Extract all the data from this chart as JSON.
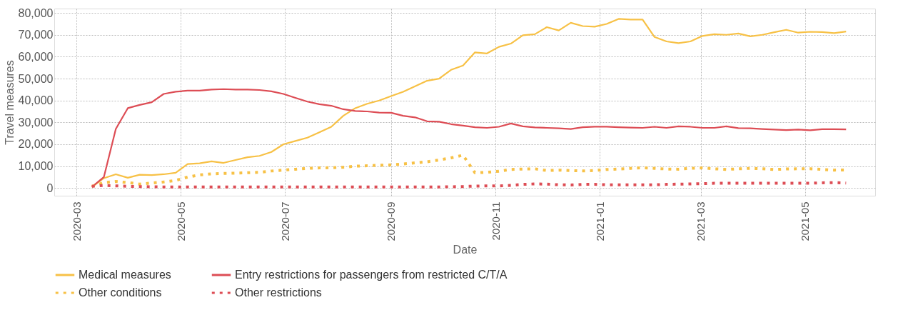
{
  "chart_data": {
    "type": "line",
    "xlabel": "Date",
    "ylabel": "Travel measures",
    "x": [
      "2020-03-10",
      "2020-03-17",
      "2020-03-24",
      "2020-03-31",
      "2020-04-07",
      "2020-04-14",
      "2020-04-21",
      "2020-04-28",
      "2020-05-05",
      "2020-05-12",
      "2020-05-19",
      "2020-05-26",
      "2020-06-02",
      "2020-06-09",
      "2020-06-16",
      "2020-06-23",
      "2020-06-30",
      "2020-07-07",
      "2020-07-14",
      "2020-07-21",
      "2020-07-28",
      "2020-08-04",
      "2020-08-11",
      "2020-08-18",
      "2020-08-25",
      "2020-09-01",
      "2020-09-08",
      "2020-09-15",
      "2020-09-22",
      "2020-09-29",
      "2020-10-06",
      "2020-10-13",
      "2020-10-20",
      "2020-10-27",
      "2020-11-03",
      "2020-11-10",
      "2020-11-17",
      "2020-11-24",
      "2020-12-01",
      "2020-12-08",
      "2020-12-15",
      "2020-12-22",
      "2020-12-29",
      "2021-01-05",
      "2021-01-12",
      "2021-01-19",
      "2021-01-26",
      "2021-02-02",
      "2021-02-09",
      "2021-02-16",
      "2021-02-23",
      "2021-03-02",
      "2021-03-09",
      "2021-03-16",
      "2021-03-23",
      "2021-03-30",
      "2021-04-06",
      "2021-04-13",
      "2021-04-20",
      "2021-04-27",
      "2021-05-04",
      "2021-05-11",
      "2021-05-18",
      "2021-05-25"
    ],
    "series": [
      {
        "name": "Medical measures",
        "color": "#f7c146",
        "line_style": "solid",
        "values": [
          500,
          4500,
          6300,
          4700,
          6100,
          5900,
          6300,
          7000,
          11000,
          11300,
          12200,
          11500,
          12800,
          14100,
          14700,
          16500,
          20000,
          21500,
          23000,
          25500,
          28000,
          33000,
          36500,
          38500,
          40000,
          42000,
          44000,
          46500,
          49000,
          50000,
          54000,
          56000,
          62000,
          61500,
          64500,
          66000,
          69800,
          70300,
          73500,
          72000,
          75500,
          74000,
          73700,
          75000,
          77300,
          77000,
          77000,
          69000,
          67000,
          66200,
          67000,
          69500,
          70300,
          70000,
          70600,
          69300,
          70000,
          71200,
          72300,
          71000,
          71400,
          71300,
          70800,
          71500
        ]
      },
      {
        "name": "Entry restrictions for passengers from restricted C/T/A",
        "color": "#dd4d55",
        "line_style": "solid",
        "values": [
          500,
          5000,
          27000,
          36500,
          38000,
          39200,
          43000,
          44000,
          44500,
          44500,
          45000,
          45200,
          45000,
          45000,
          44800,
          44200,
          43000,
          41200,
          39500,
          38300,
          37600,
          36000,
          35200,
          35000,
          34500,
          34400,
          33000,
          32300,
          30500,
          30300,
          29200,
          28500,
          27800,
          27500,
          28000,
          29500,
          28200,
          27700,
          27500,
          27300,
          27000,
          27800,
          28000,
          28000,
          27800,
          27600,
          27500,
          28000,
          27500,
          28200,
          28000,
          27500,
          27500,
          28200,
          27400,
          27300,
          27000,
          26700,
          26500,
          26700,
          26400,
          26900,
          26900,
          26800
        ]
      },
      {
        "name": "Other conditions",
        "color": "#f7c146",
        "line_style": "dotted",
        "values": [
          800,
          2500,
          3000,
          2500,
          1800,
          2300,
          2800,
          3500,
          5000,
          6000,
          6500,
          6700,
          6800,
          7000,
          7200,
          7800,
          8200,
          8600,
          9000,
          9200,
          9300,
          9500,
          10000,
          10200,
          10400,
          10600,
          11000,
          11500,
          12000,
          12800,
          13800,
          15000,
          7000,
          7200,
          7700,
          8500,
          8700,
          8800,
          8000,
          8200,
          8000,
          7800,
          8000,
          8500,
          8700,
          9000,
          9300,
          9000,
          8700,
          8600,
          9000,
          9200,
          8800,
          8500,
          8800,
          9000,
          8800,
          8500,
          8700,
          8800,
          8800,
          8500,
          8200,
          8300
        ]
      },
      {
        "name": "Other restrictions",
        "color": "#dd4d55",
        "line_style": "dotted",
        "values": [
          800,
          1200,
          1000,
          800,
          700,
          600,
          500,
          500,
          500,
          500,
          500,
          500,
          500,
          500,
          500,
          500,
          500,
          500,
          500,
          500,
          500,
          500,
          500,
          500,
          500,
          500,
          500,
          500,
          500,
          500,
          600,
          700,
          900,
          1000,
          1000,
          1200,
          1700,
          1900,
          1800,
          1500,
          1400,
          1700,
          1700,
          1500,
          1500,
          1500,
          1500,
          1500,
          1700,
          1800,
          1900,
          2000,
          2200,
          2200,
          2200,
          2200,
          2200,
          2200,
          2200,
          2200,
          2200,
          2400,
          2500,
          2300
        ]
      }
    ],
    "xlim": [
      "2020-02-17",
      "2021-06-11"
    ],
    "xticks": [
      "2020-03",
      "2020-05",
      "2020-07",
      "2020-09",
      "2020-11",
      "2021-01",
      "2021-03",
      "2021-05"
    ],
    "ylim": [
      -3500,
      82000
    ],
    "yticks": [
      {
        "value": 0,
        "label": "0"
      },
      {
        "value": 10000,
        "label": "10,000"
      },
      {
        "value": 20000,
        "label": "20,000"
      },
      {
        "value": 30000,
        "label": "30,000"
      },
      {
        "value": 40000,
        "label": "40,000"
      },
      {
        "value": 50000,
        "label": "50,000"
      },
      {
        "value": 60000,
        "label": "60,000"
      },
      {
        "value": 70000,
        "label": "70,000"
      },
      {
        "value": 80000,
        "label": "80,000"
      }
    ],
    "grid": true,
    "legend": "bottom",
    "marker": "none"
  }
}
